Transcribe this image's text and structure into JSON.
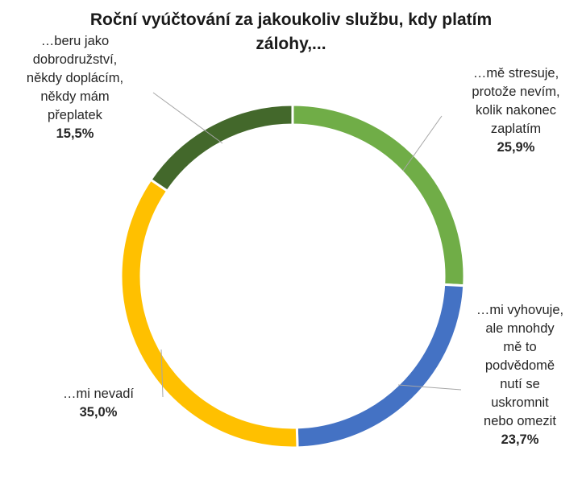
{
  "chart_data": {
    "type": "pie",
    "title_lines": [
      "Roční vyúčtování za jakoukoliv službu, kdy platím",
      "zálohy,..."
    ],
    "slices": [
      {
        "label_lines": [
          "…mě stresuje,",
          "protože nevím,",
          "kolik nakonec",
          "zaplatím"
        ],
        "value": 25.9,
        "value_label": "25,9%",
        "color": "#70AD47"
      },
      {
        "label_lines": [
          "…mi vyhovuje,",
          "ale mnohdy",
          "mě to",
          "podvědomě",
          "nutí se",
          "uskromnit",
          "nebo omezit"
        ],
        "value": 23.7,
        "value_label": "23,7%",
        "color": "#4472C4"
      },
      {
        "label_lines": [
          "…mi nevadí"
        ],
        "value": 35.0,
        "value_label": "35,0%",
        "color": "#FFC000"
      },
      {
        "label_lines": [
          "…beru jako",
          "dobrodružství,",
          "někdy doplácím,",
          "někdy mám",
          "přeplatek"
        ],
        "value": 15.5,
        "value_label": "15,5%",
        "color": "#43682B"
      }
    ],
    "legend": "none",
    "style": "doughnut"
  }
}
